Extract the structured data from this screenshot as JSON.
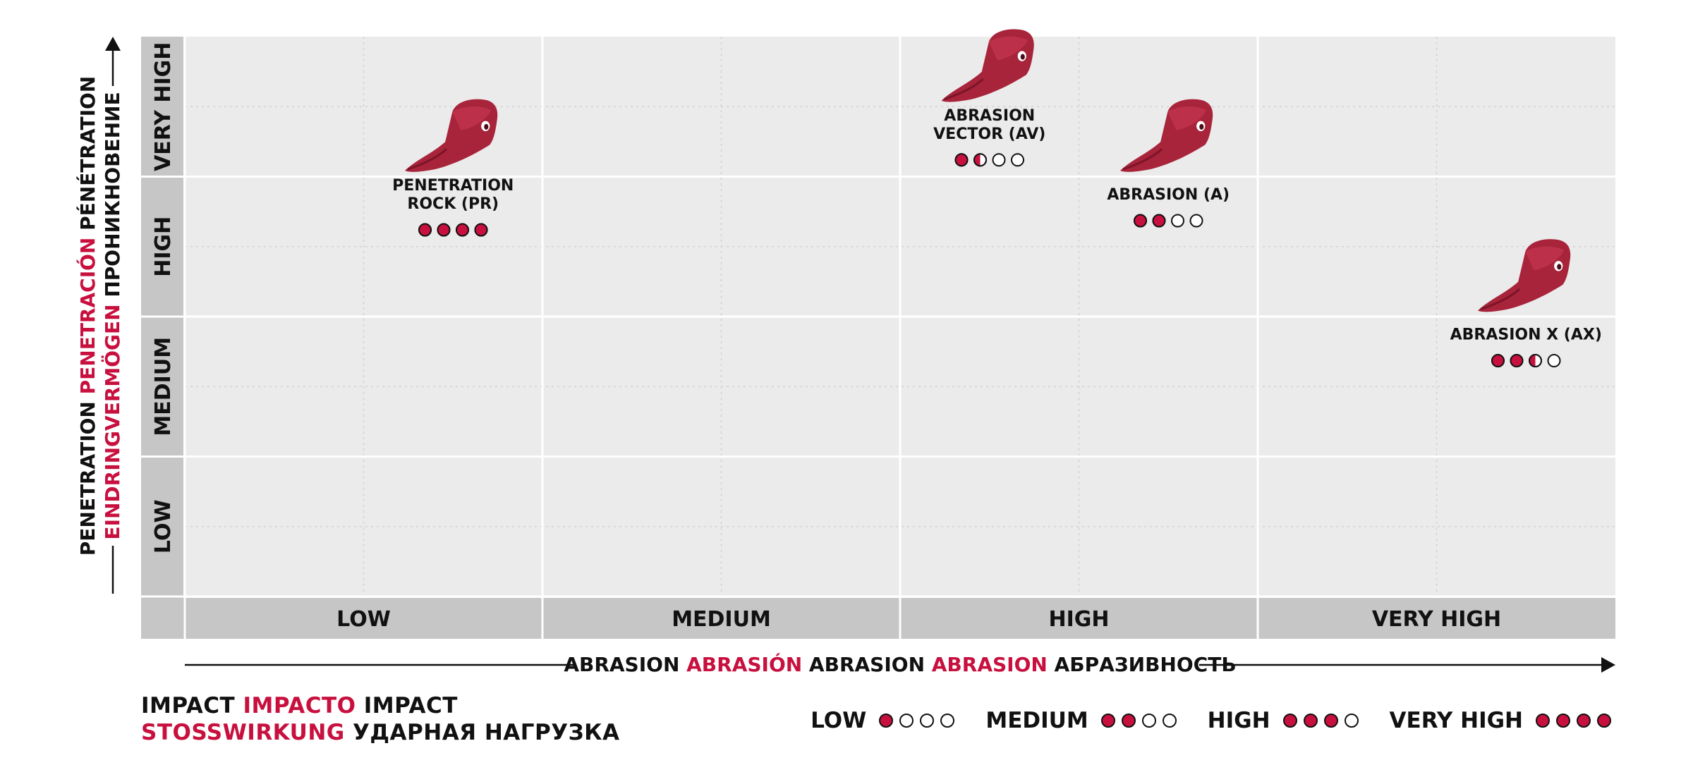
{
  "chart_data": {
    "type": "scatter",
    "x_axis": {
      "categories": [
        "LOW",
        "MEDIUM",
        "HIGH",
        "VERY HIGH"
      ],
      "label_parts": [
        {
          "text": "ABRASION",
          "color": "#111111"
        },
        {
          "text": "ABRASIÓN",
          "color": "#c8103e"
        },
        {
          "text": "ABRASION",
          "color": "#111111"
        },
        {
          "text": "ABRASION",
          "color": "#c8103e"
        },
        {
          "text": "АБРАЗИВНОСТЬ",
          "color": "#111111"
        }
      ],
      "range": [
        0,
        4
      ]
    },
    "y_axis": {
      "categories": [
        "LOW",
        "MEDIUM",
        "HIGH",
        "VERY HIGH"
      ],
      "label_line1": [
        {
          "text": "PENETRATION",
          "color": "#111111"
        },
        {
          "text": "PENETRACIÓN",
          "color": "#c8103e"
        },
        {
          "text": "PÉNÉTRATION",
          "color": "#111111"
        }
      ],
      "label_line2": [
        {
          "text": "EINDRINGVERMÖGEN",
          "color": "#c8103e"
        },
        {
          "text": "ПРОНИКНОВЕНИЕ",
          "color": "#111111"
        }
      ],
      "range": [
        0,
        4
      ]
    },
    "points": [
      {
        "name": "PENETRATION ROCK (PR)",
        "label_lines": [
          "PENETRATION",
          "ROCK (PR)"
        ],
        "x": 0.75,
        "y": 2.7,
        "impact": 4
      },
      {
        "name": "ABRASION VECTOR (AV)",
        "label_lines": [
          "ABRASION",
          "VECTOR (AV)"
        ],
        "x": 2.25,
        "y": 3.2,
        "impact": 1.5
      },
      {
        "name": "ABRASION (A)",
        "label_lines": [
          "ABRASION (A)"
        ],
        "x": 2.75,
        "y": 2.7,
        "impact": 2
      },
      {
        "name": "ABRASION X (AX)",
        "label_lines": [
          "ABRASION X (AX)"
        ],
        "x": 3.75,
        "y": 1.7,
        "impact": 2.5
      }
    ],
    "grid": true,
    "marker": "bucket-tooth-icon",
    "colors": {
      "accent": "#c8103e",
      "panel": "#ebebeb",
      "axis_band": "#c6c6c6",
      "marker_fill": "#a8243b"
    }
  },
  "legend": {
    "title_line1": [
      {
        "text": "IMPACT",
        "red": false
      },
      {
        "text": "IMPACTO",
        "red": true
      },
      {
        "text": "IMPACT",
        "red": false
      }
    ],
    "title_line2": [
      {
        "text": "STOSSWIRKUNG",
        "red": true
      },
      {
        "text": "УДАРНАЯ НАГРУЗКА",
        "red": false
      }
    ],
    "levels": [
      {
        "label": "LOW",
        "dots": [
          1,
          0,
          0,
          0
        ]
      },
      {
        "label": "MEDIUM",
        "dots": [
          1,
          1,
          0,
          0
        ]
      },
      {
        "label": "HIGH",
        "dots": [
          1,
          1,
          1,
          0
        ]
      },
      {
        "label": "VERY HIGH",
        "dots": [
          1,
          1,
          1,
          1
        ]
      }
    ]
  }
}
